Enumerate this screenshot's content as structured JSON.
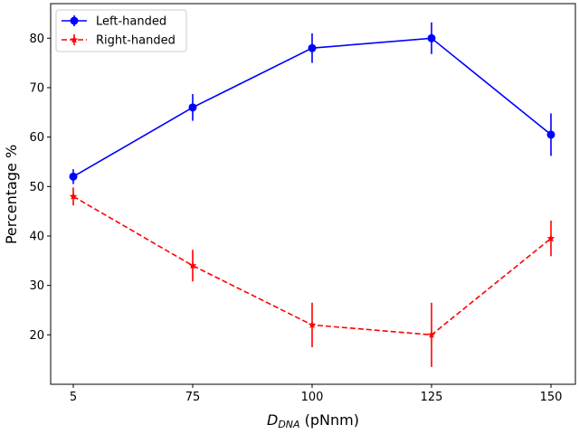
{
  "chart_data": {
    "type": "line",
    "x": [
      5,
      75,
      100,
      125,
      150
    ],
    "x_tick_labels": [
      "5",
      "75",
      "100",
      "125",
      "150"
    ],
    "xlabel_main": "D",
    "xlabel_sub": "DNA",
    "xlabel_unit": " (pNnm)",
    "ylabel": "Percentage %",
    "ylim": [
      10,
      87
    ],
    "yticks": [
      20,
      30,
      40,
      50,
      60,
      70,
      80
    ],
    "grid": false,
    "legend_position": "top-left",
    "series": [
      {
        "name": "Left-handed",
        "color": "#0000ff",
        "linestyle": "solid",
        "marker": "circle",
        "values": [
          52,
          66,
          78,
          80,
          60.5
        ],
        "errors": [
          1.5,
          2.7,
          3,
          3.2,
          4.3
        ]
      },
      {
        "name": "Right-handed",
        "color": "#ff0000",
        "linestyle": "dashed",
        "marker": "star",
        "values": [
          48,
          34,
          22,
          20,
          39.5
        ],
        "errors": [
          1.8,
          3.2,
          4.5,
          6.5,
          3.6
        ]
      }
    ]
  }
}
